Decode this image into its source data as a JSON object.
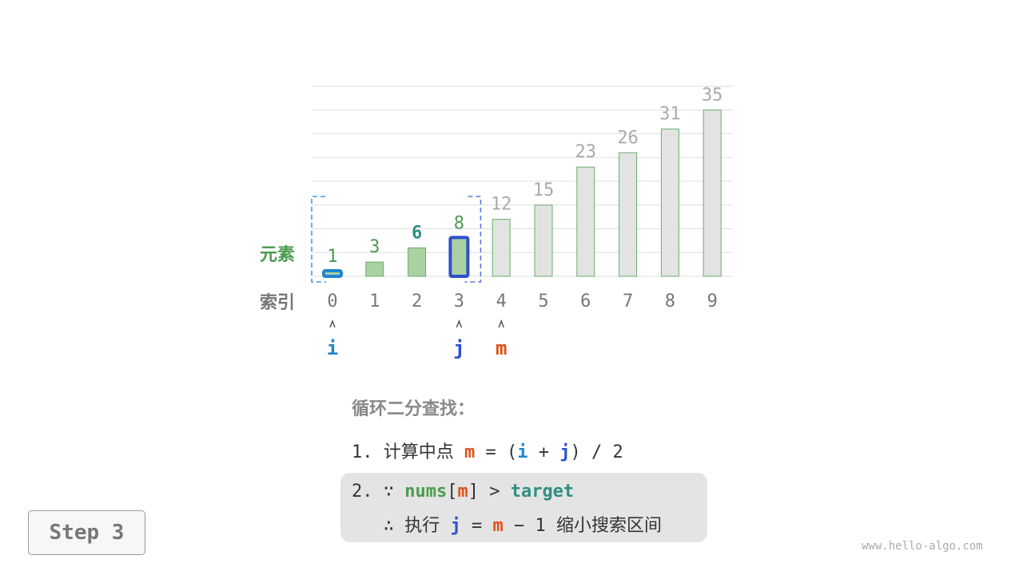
{
  "chart_data": {
    "type": "bar",
    "categories": [
      "0",
      "1",
      "2",
      "3",
      "4",
      "5",
      "6",
      "7",
      "8",
      "9"
    ],
    "values": [
      1,
      3,
      6,
      8,
      12,
      15,
      23,
      26,
      31,
      35
    ],
    "ylim": [
      0,
      40
    ],
    "grid": true,
    "row_label_values": "元素",
    "row_label_index": "索引",
    "search_range": [
      0,
      3
    ],
    "target_value": 6,
    "pointers": [
      {
        "name": "i",
        "index": 0,
        "color": "#1f86cf"
      },
      {
        "name": "j",
        "index": 3,
        "color": "#2e4fd1"
      },
      {
        "name": "m",
        "index": 4,
        "color": "#e0521a"
      }
    ],
    "colors": {
      "in_range_fill": "#a9d1a2",
      "in_range_stroke": "#6aae6a",
      "out_fill": "#e3e3e3",
      "value_in": "#4b9b4f",
      "value_out": "#aaaaaa",
      "target": "#2f8f83",
      "index": "#777777"
    }
  },
  "steps": {
    "title": "循环二分查找：",
    "line1": {
      "prefix": "1. 计算中点 ",
      "m": "m",
      "eq": " = (",
      "i": "i",
      "plus": " + ",
      "j": "j",
      "tail": ") / 2"
    },
    "line2": {
      "prefix": "2. ∵ ",
      "nums": "nums",
      "lb": "[",
      "m": "m",
      "rb": "] > ",
      "target": "target"
    },
    "line3": {
      "prefix": "   ∴ 执行 ",
      "j": "j",
      "eq": " = ",
      "m": "m",
      "tail": " − 1 缩小搜索区间"
    }
  },
  "step_label": "Step 3",
  "watermark": "www.hello-algo.com"
}
